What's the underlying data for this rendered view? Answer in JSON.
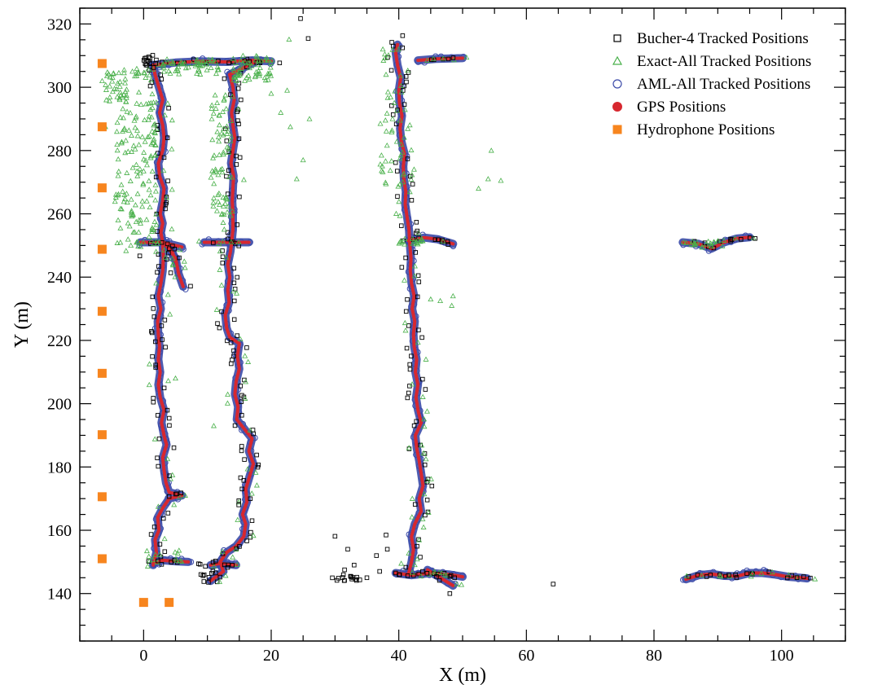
{
  "chart_data": {
    "type": "scatter",
    "title": "",
    "xlabel": "X (m)",
    "ylabel": "Y (m)",
    "xlim": [
      -10,
      110
    ],
    "ylim": [
      125,
      325
    ],
    "x_ticks": [
      0,
      20,
      40,
      60,
      80,
      100
    ],
    "y_ticks": [
      140,
      160,
      180,
      200,
      220,
      240,
      260,
      280,
      300,
      320
    ],
    "grid": false,
    "legend_position": "top-right",
    "series": [
      {
        "name": "Bucher-4 Tracked Positions",
        "marker": "open-square",
        "color": "#000000",
        "sample_points": [
          [
            24.6,
            321.7
          ],
          [
            25.8,
            315.4
          ],
          [
            40.6,
            316.3
          ],
          [
            38.9,
            314.2
          ],
          [
            -0.6,
            246.7
          ],
          [
            64.2,
            143.0
          ],
          [
            30.0,
            158.1
          ],
          [
            32.0,
            154.0
          ],
          [
            38.0,
            158.5
          ],
          [
            36.5,
            152.0
          ],
          [
            37.0,
            147.0
          ],
          [
            35.0,
            145.0
          ],
          [
            33.2,
            144.5
          ],
          [
            31.5,
            147.5
          ],
          [
            33.0,
            149.0
          ],
          [
            38.2,
            154.0
          ],
          [
            39.5,
            146.5
          ],
          [
            104.5,
            144.9
          ],
          [
            92.0,
            252.0
          ],
          [
            48.0,
            140.0
          ]
        ]
      },
      {
        "name": "Exact-All Tracked Positions",
        "marker": "open-triangle",
        "color": "#49b04a",
        "sample_points": [
          [
            -6.5,
            302.0
          ],
          [
            -3.0,
            287.0
          ],
          [
            -6.0,
            287.5
          ],
          [
            -4.0,
            272.0
          ],
          [
            -3.0,
            266.0
          ],
          [
            -2.0,
            250.0
          ],
          [
            0.5,
            264.0
          ],
          [
            5.0,
            208.0
          ],
          [
            11.0,
            193.0
          ],
          [
            19.0,
            303.0
          ],
          [
            20.0,
            298.0
          ],
          [
            21.5,
            292.0
          ],
          [
            22.5,
            299.0
          ],
          [
            23.0,
            287.5
          ],
          [
            24.0,
            271.0
          ],
          [
            25.0,
            277.0
          ],
          [
            26.0,
            290.0
          ],
          [
            22.8,
            315.1
          ],
          [
            37.5,
            312.0
          ],
          [
            38.0,
            304.0
          ],
          [
            54.5,
            280.0
          ],
          [
            54.0,
            271.0
          ],
          [
            56.0,
            270.5
          ],
          [
            52.5,
            268.0
          ],
          [
            48.5,
            234.0
          ],
          [
            46.5,
            232.5
          ],
          [
            45.0,
            233.0
          ],
          [
            48.3,
            231.0
          ],
          [
            40.5,
            251.0
          ]
        ]
      },
      {
        "name": "AML-All Tracked Positions",
        "marker": "open-circle",
        "color": "#3b4aa8",
        "sample_points": []
      },
      {
        "name": "GPS Positions",
        "marker": "filled-circle",
        "color": "#d7282f",
        "sample_points": []
      },
      {
        "name": "Hydrophone Positions",
        "marker": "filled-square",
        "color": "#f7851e",
        "points": [
          [
            -6.5,
            307.5
          ],
          [
            -6.5,
            287.5
          ],
          [
            -6.5,
            268.2
          ],
          [
            -6.5,
            248.8
          ],
          [
            -6.5,
            229.2
          ],
          [
            -6.5,
            209.6
          ],
          [
            -6.5,
            190.2
          ],
          [
            -6.5,
            170.6
          ],
          [
            -6.5,
            151.0
          ],
          [
            0.0,
            137.2
          ],
          [
            4.0,
            137.2
          ]
        ]
      }
    ],
    "gps_tracks": [
      {
        "id": "track-1",
        "points": [
          [
            1.5,
            149
          ],
          [
            2.0,
            153
          ],
          [
            1.8,
            157
          ],
          [
            2.4,
            160
          ],
          [
            2.2,
            164
          ],
          [
            3.0,
            167
          ],
          [
            4.0,
            170
          ],
          [
            6.0,
            171
          ],
          [
            4.0,
            172
          ],
          [
            3.5,
            175
          ],
          [
            3.2,
            179
          ],
          [
            3.0,
            183
          ],
          [
            3.6,
            187
          ],
          [
            3.2,
            190
          ],
          [
            2.8,
            194
          ],
          [
            3.2,
            198
          ],
          [
            2.6,
            202
          ],
          [
            2.3,
            206
          ],
          [
            2.6,
            210
          ],
          [
            2.3,
            214
          ],
          [
            2.5,
            218
          ],
          [
            2.3,
            222
          ],
          [
            2.2,
            226
          ],
          [
            2.7,
            230
          ],
          [
            2.3,
            234
          ],
          [
            2.7,
            238
          ],
          [
            3.0,
            242
          ],
          [
            3.1,
            246
          ],
          [
            3.0,
            251
          ],
          [
            2.7,
            254
          ],
          [
            3.0,
            257
          ],
          [
            2.6,
            260
          ],
          [
            3.0,
            264
          ],
          [
            3.2,
            268
          ],
          [
            2.5,
            272
          ],
          [
            2.3,
            276
          ],
          [
            3.0,
            280
          ],
          [
            3.2,
            284
          ],
          [
            3.0,
            288
          ],
          [
            2.5,
            292
          ],
          [
            3.0,
            296
          ],
          [
            2.4,
            300
          ],
          [
            1.8,
            304
          ],
          [
            1.5,
            307
          ]
        ]
      },
      {
        "id": "track-2",
        "points": [
          [
            1.5,
            307
          ],
          [
            5.0,
            307.8
          ],
          [
            9.0,
            308.2
          ],
          [
            13.0,
            308.0
          ],
          [
            17.0,
            308.5
          ],
          [
            20.0,
            308.2
          ]
        ]
      },
      {
        "id": "track-3",
        "points": [
          [
            13.5,
            304
          ],
          [
            14.0,
            300
          ],
          [
            14.2,
            296
          ],
          [
            13.8,
            292
          ],
          [
            14.0,
            288
          ],
          [
            14.3,
            284
          ],
          [
            14.0,
            280
          ],
          [
            13.7,
            276
          ],
          [
            14.1,
            272
          ],
          [
            14.0,
            268
          ],
          [
            13.9,
            264
          ],
          [
            14.0,
            260
          ],
          [
            14.0,
            255
          ],
          [
            13.8,
            251
          ],
          [
            13.6,
            248
          ],
          [
            13.2,
            244
          ],
          [
            13.5,
            240
          ],
          [
            13.2,
            236
          ],
          [
            13.4,
            232
          ],
          [
            12.8,
            228
          ],
          [
            13.0,
            224
          ],
          [
            13.5,
            221
          ],
          [
            15.0,
            219
          ],
          [
            14.7,
            215
          ],
          [
            15.0,
            211
          ],
          [
            14.5,
            207
          ],
          [
            14.3,
            203
          ],
          [
            14.8,
            199
          ],
          [
            14.6,
            195
          ],
          [
            15.8,
            192
          ],
          [
            17.0,
            189
          ],
          [
            16.5,
            185
          ],
          [
            17.2,
            181
          ],
          [
            16.6,
            177
          ],
          [
            16.0,
            173
          ],
          [
            16.2,
            169
          ],
          [
            15.5,
            165
          ],
          [
            16.0,
            162
          ],
          [
            15.7,
            158
          ],
          [
            14.5,
            155
          ],
          [
            13.0,
            153
          ],
          [
            12.0,
            150
          ],
          [
            12.5,
            147
          ],
          [
            10.5,
            144
          ]
        ]
      },
      {
        "id": "track-4",
        "points": [
          [
            13.5,
            304
          ],
          [
            15.5,
            306
          ],
          [
            18.0,
            308.5
          ]
        ]
      },
      {
        "id": "track-5",
        "points": [
          [
            -0.5,
            251.0
          ],
          [
            3.0,
            251.0
          ],
          [
            6.0,
            249.5
          ]
        ]
      },
      {
        "id": "track-6",
        "points": [
          [
            3.2,
            251.0
          ],
          [
            5.0,
            246
          ],
          [
            5.5,
            241
          ],
          [
            6.2,
            237
          ]
        ]
      },
      {
        "id": "track-7",
        "points": [
          [
            3.2,
            251.0
          ],
          [
            4.5,
            248
          ],
          [
            5.0,
            245
          ]
        ]
      },
      {
        "id": "track-8",
        "points": [
          [
            9.5,
            251.0
          ],
          [
            13.5,
            251.0
          ],
          [
            16.5,
            251.0
          ]
        ]
      },
      {
        "id": "track-9",
        "points": [
          [
            1.5,
            149.5
          ],
          [
            3.0,
            150.5
          ],
          [
            5.0,
            150.2
          ],
          [
            7.0,
            150.0
          ]
        ]
      },
      {
        "id": "track-10",
        "points": [
          [
            10.5,
            149.0
          ],
          [
            12.0,
            149.5
          ],
          [
            13.5,
            149.2
          ],
          [
            14.5,
            149.0
          ]
        ]
      },
      {
        "id": "track-11",
        "points": [
          [
            41.5,
            146
          ],
          [
            42.0,
            150
          ],
          [
            42.3,
            154
          ],
          [
            42.0,
            158
          ],
          [
            42.5,
            162
          ],
          [
            43.5,
            166
          ],
          [
            43.2,
            170
          ],
          [
            43.8,
            174
          ],
          [
            43.5,
            178
          ],
          [
            43.2,
            182
          ],
          [
            42.8,
            186
          ],
          [
            42.6,
            190
          ],
          [
            43.5,
            194
          ],
          [
            43.0,
            198
          ],
          [
            42.7,
            202
          ],
          [
            43.0,
            206
          ],
          [
            42.6,
            210
          ],
          [
            42.8,
            214
          ],
          [
            42.4,
            218
          ],
          [
            42.3,
            222
          ],
          [
            42.5,
            226
          ],
          [
            42.1,
            230
          ],
          [
            42.4,
            234
          ],
          [
            42.0,
            238
          ],
          [
            41.8,
            242
          ],
          [
            41.9,
            246
          ],
          [
            41.7,
            251
          ],
          [
            41.6,
            255
          ],
          [
            41.3,
            259
          ],
          [
            41.0,
            263
          ],
          [
            41.1,
            267
          ],
          [
            40.8,
            271
          ],
          [
            40.7,
            275
          ],
          [
            40.9,
            279
          ],
          [
            40.4,
            283
          ],
          [
            40.2,
            287
          ],
          [
            40.5,
            291
          ],
          [
            40.1,
            295
          ],
          [
            40.0,
            299
          ],
          [
            40.3,
            303
          ],
          [
            39.8,
            307
          ],
          [
            39.5,
            311
          ],
          [
            39.8,
            313.5
          ]
        ]
      },
      {
        "id": "track-12",
        "points": [
          [
            43.0,
            308.5
          ],
          [
            46.0,
            309.0
          ],
          [
            50.0,
            309.2
          ]
        ]
      },
      {
        "id": "track-13",
        "points": [
          [
            41.5,
            251.5
          ],
          [
            44.0,
            252.5
          ],
          [
            46.0,
            252.0
          ],
          [
            48.5,
            250.5
          ]
        ]
      },
      {
        "id": "track-14",
        "points": [
          [
            39.5,
            146.5
          ],
          [
            42.0,
            145.8
          ],
          [
            45.0,
            146.5
          ],
          [
            48.0,
            146.0
          ],
          [
            50.0,
            145.3
          ]
        ]
      },
      {
        "id": "track-15",
        "points": [
          [
            44.5,
            147.5
          ],
          [
            46.5,
            145.0
          ],
          [
            48.5,
            142.5
          ]
        ]
      },
      {
        "id": "track-16",
        "points": [
          [
            84.5,
            251.0
          ],
          [
            87.0,
            250.5
          ],
          [
            89.0,
            249.0
          ],
          [
            91.0,
            251.0
          ],
          [
            93.0,
            252.2
          ],
          [
            95.0,
            252.6
          ]
        ]
      },
      {
        "id": "track-17",
        "points": [
          [
            85.0,
            144.5
          ],
          [
            87.0,
            145.8
          ],
          [
            89.0,
            146.2
          ],
          [
            91.0,
            145.6
          ],
          [
            93.0,
            145.5
          ],
          [
            95.0,
            146.5
          ],
          [
            97.0,
            146.5
          ],
          [
            99.0,
            146.0
          ],
          [
            101.0,
            145.3
          ],
          [
            103.0,
            145.0
          ],
          [
            104.0,
            144.8
          ]
        ]
      }
    ]
  }
}
